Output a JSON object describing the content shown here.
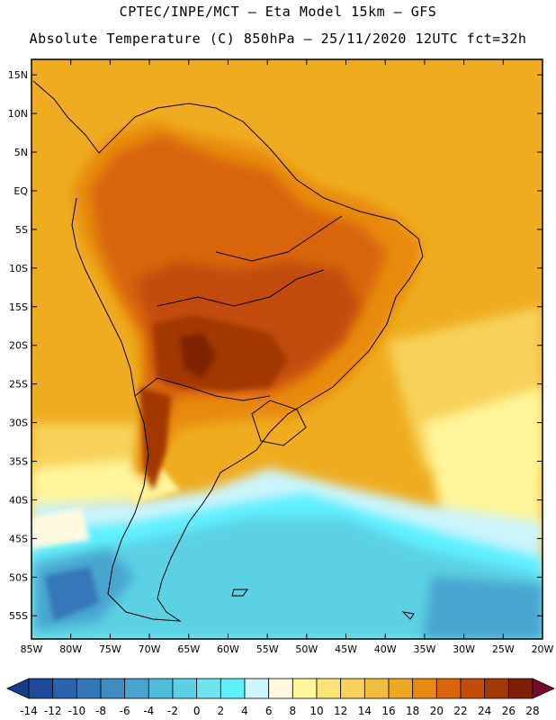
{
  "header": {
    "line1": "CPTEC/INPE/MCT –  Eta Model 15km – GFS",
    "line2": "Absolute Temperature (C) 850hPa – 25/11/2020 12UTC fct=32h"
  },
  "map": {
    "lon_range": [
      -85,
      -20
    ],
    "lat_range": [
      -58,
      17
    ],
    "lat_ticks": [
      {
        "value": 15,
        "label": "15N"
      },
      {
        "value": 10,
        "label": "10N"
      },
      {
        "value": 5,
        "label": "5N"
      },
      {
        "value": 0,
        "label": "EQ"
      },
      {
        "value": -5,
        "label": "5S"
      },
      {
        "value": -10,
        "label": "10S"
      },
      {
        "value": -15,
        "label": "15S"
      },
      {
        "value": -20,
        "label": "20S"
      },
      {
        "value": -25,
        "label": "25S"
      },
      {
        "value": -30,
        "label": "30S"
      },
      {
        "value": -35,
        "label": "35S"
      },
      {
        "value": -40,
        "label": "40S"
      },
      {
        "value": -45,
        "label": "45S"
      },
      {
        "value": -50,
        "label": "50S"
      },
      {
        "value": -55,
        "label": "55S"
      }
    ],
    "lon_ticks": [
      {
        "value": -85,
        "label": "85W"
      },
      {
        "value": -80,
        "label": "80W"
      },
      {
        "value": -75,
        "label": "75W"
      },
      {
        "value": -70,
        "label": "70W"
      },
      {
        "value": -65,
        "label": "65W"
      },
      {
        "value": -60,
        "label": "60W"
      },
      {
        "value": -55,
        "label": "55W"
      },
      {
        "value": -50,
        "label": "50W"
      },
      {
        "value": -45,
        "label": "45W"
      },
      {
        "value": -40,
        "label": "40W"
      },
      {
        "value": -35,
        "label": "35W"
      },
      {
        "value": -30,
        "label": "30W"
      },
      {
        "value": -25,
        "label": "25W"
      },
      {
        "value": -20,
        "label": "20W"
      }
    ]
  },
  "colorbar": {
    "labels": [
      "-14",
      "-12",
      "-10",
      "-8",
      "-6",
      "-4",
      "-2",
      "0",
      "2",
      "4",
      "6",
      "8",
      "10",
      "12",
      "14",
      "16",
      "18",
      "20",
      "22",
      "24",
      "26",
      "28"
    ],
    "under_color": "#1a3a8a",
    "over_color": "#7a0a2a",
    "colors": [
      "#1f4a9a",
      "#2a63ad",
      "#3477b8",
      "#3f8cc3",
      "#48a4cf",
      "#4fbdd9",
      "#5cd1e3",
      "#6fe3ee",
      "#5ef0ff",
      "#ccf4fb",
      "#fff9e0",
      "#fff59a",
      "#fbe473",
      "#f7d15a",
      "#f1bd3d",
      "#eea720",
      "#e88a10",
      "#d8650a",
      "#c24c08",
      "#a23806",
      "#7f2004"
    ]
  },
  "colors": {
    "ocean_base": "#efac20",
    "land_hot": "#c24c08",
    "land_core": "#7f2004",
    "cold_ocean": "#5cd1e3"
  }
}
